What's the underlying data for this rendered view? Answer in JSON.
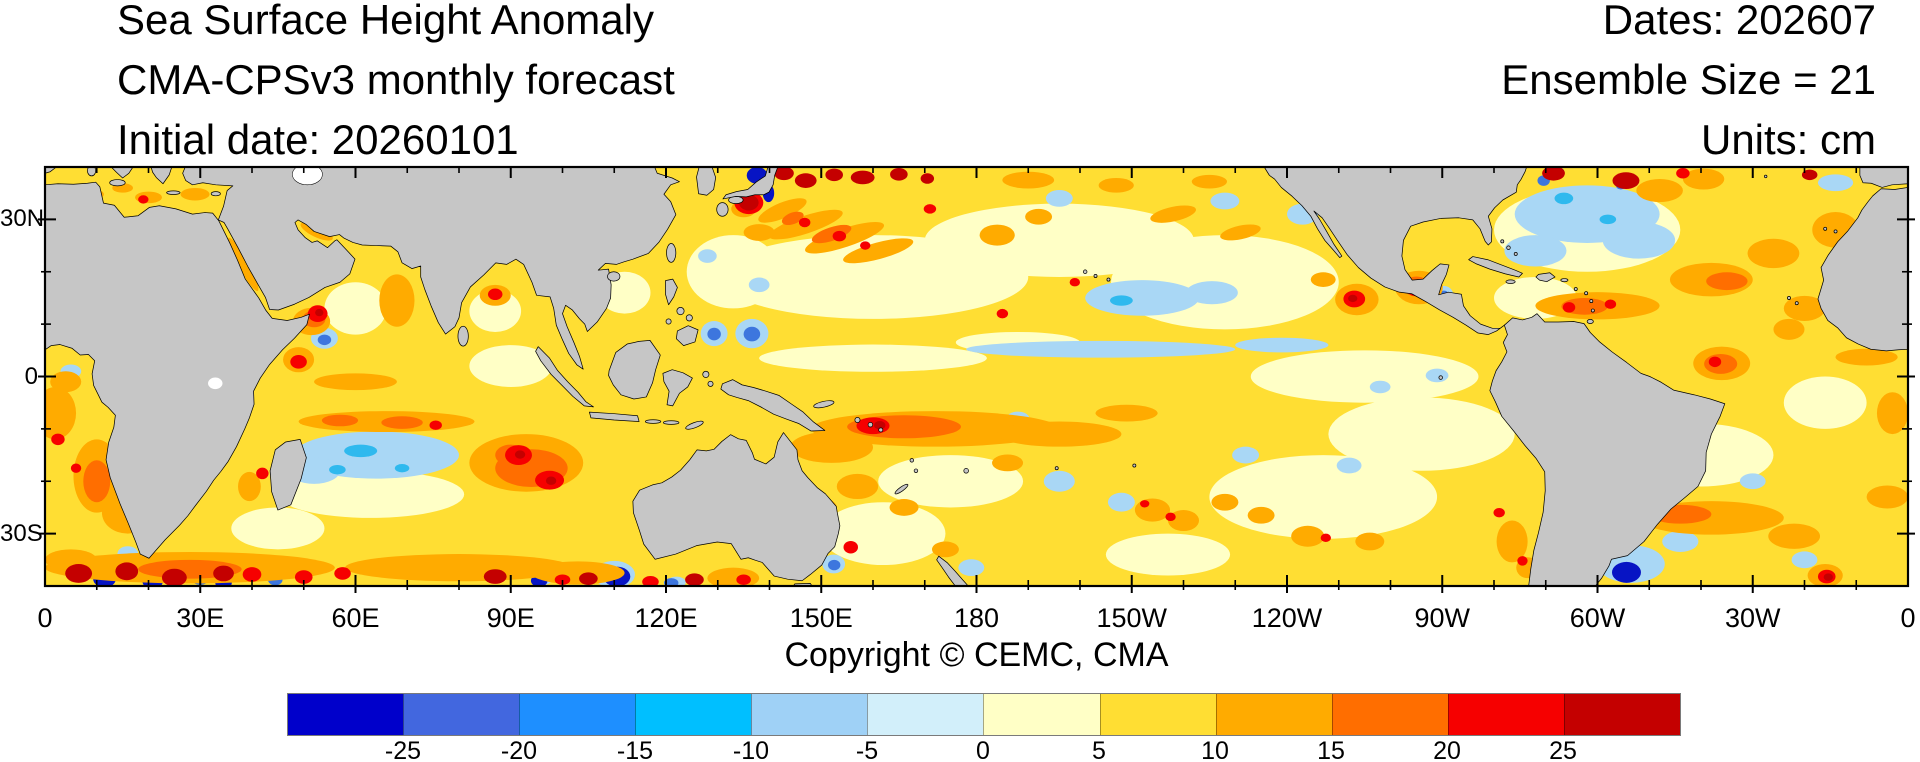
{
  "header": {
    "title": "Sea Surface Height Anomaly",
    "subtitle": "CMA-CPSv3 monthly forecast",
    "initial_date": "Initial date: 20260101",
    "dates": "Dates: 202607",
    "ensemble": "Ensemble Size = 21",
    "units": "Units: cm"
  },
  "footer": {
    "copyright": "Copyright © CEMC, CMA"
  },
  "axes": {
    "x_ticks": [
      {
        "label": "0",
        "lon": 0
      },
      {
        "label": "30E",
        "lon": 30
      },
      {
        "label": "60E",
        "lon": 60
      },
      {
        "label": "90E",
        "lon": 90
      },
      {
        "label": "120E",
        "lon": 120
      },
      {
        "label": "150E",
        "lon": 150
      },
      {
        "label": "180",
        "lon": 180
      },
      {
        "label": "150W",
        "lon": 210
      },
      {
        "label": "120W",
        "lon": 240
      },
      {
        "label": "90W",
        "lon": 270
      },
      {
        "label": "60W",
        "lon": 300
      },
      {
        "label": "30W",
        "lon": 330
      },
      {
        "label": "0",
        "lon": 360
      }
    ],
    "y_ticks": [
      {
        "label": "30N",
        "lat": 30
      },
      {
        "label": "0",
        "lat": 0
      },
      {
        "label": "30S",
        "lat": -30
      }
    ]
  },
  "colorbar": {
    "segment_colors": [
      "#0000CB",
      "#4267DF",
      "#1E8FFF",
      "#00BFFF",
      "#9FD1F6",
      "#D2EFFA",
      "#FFFFC6",
      "#FFDE33",
      "#FFAB00",
      "#FF6E00",
      "#F60000",
      "#C40000"
    ],
    "boundary_labels": [
      "-25",
      "-20",
      "-15",
      "-10",
      "-5",
      "0",
      "5",
      "10",
      "15",
      "20",
      "25"
    ]
  },
  "chart_data": {
    "type": "heatmap",
    "subtype": "filled-contour world map (sea surface height anomaly)",
    "title": "Sea Surface Height Anomaly",
    "model": "CMA-CPSv3 monthly forecast",
    "initial_date": "20260101",
    "forecast_month": "202607",
    "ensemble_size": 21,
    "units": "cm",
    "lon_range": [
      0,
      360
    ],
    "lat_range": [
      -40,
      40
    ],
    "xlabel_ticks_deg": [
      0,
      30,
      60,
      90,
      120,
      150,
      180,
      210,
      240,
      270,
      300,
      330,
      360
    ],
    "ylabel_ticks_deg": [
      30,
      0,
      -30
    ],
    "contour_levels": [
      -25,
      -20,
      -15,
      -10,
      -5,
      0,
      5,
      10,
      15,
      20,
      25
    ],
    "palette": [
      "#0000CB",
      "#4267DF",
      "#1E8FFF",
      "#00BFFF",
      "#9FD1F6",
      "#D2EFFA",
      "#FFFFC6",
      "#FFDE33",
      "#FFAB00",
      "#FF6E00",
      "#F60000",
      "#C40000"
    ],
    "land_color": "#C6C6C6",
    "dominant_value_cm": "5-10 (yellow) over most oceans",
    "notable_features": [
      "Strong +/- eddy dipoles (dark red / dark blue, |SSHA|>25 cm) along 35-40N near Japan (Kuroshio extension)",
      "Strong eddy dipoles along the Gulf Stream near 38-40N, 70-55W",
      "Intense alternating red/blue eddies along 35-40S in the Agulhas retroflection (0-60E) and south of Australia",
      "Orange band (10-15 cm) along ~10S in the western South Pacific east of the Solomon Islands, with small >20 cm red cores near 160E",
      "Orange/red blob (15-25 cm) in the southeast Indian Ocean near 90-100E, 13-20S",
      "Light blue negative band (-5 to -10 cm) in the central south Indian Ocean 50-80E, 11-20S",
      "Two small negative (-10 to -15 cm) eddies near 8N, 129E/137E east of the Philippines",
      "Negative (-5 to -10 cm) region in the subtropical North Atlantic 25-35N",
      "Red positive eddy (20+ cm) off Somalia near 52E, 12N and off Mexico near 107W, 15N",
      "Dark blue negative eddy (<-25 cm) offshore Argentina near 55W, 38S"
    ]
  }
}
